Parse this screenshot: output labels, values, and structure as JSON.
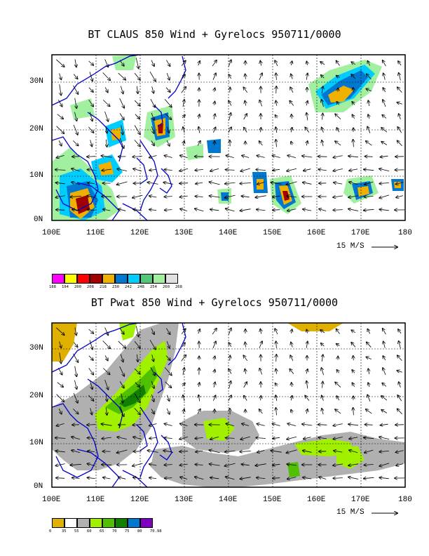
{
  "panels": [
    {
      "title": "BT CLAUS 850 Wind + Gyrelocs 950711/0000",
      "lat_labels": [
        "30N",
        "20N",
        "10N",
        "0N"
      ],
      "lon_labels": [
        "100E",
        "110E",
        "120E",
        "130E",
        "140E",
        "150E",
        "160E",
        "170E",
        "180"
      ],
      "vector_scale": "15 M/S",
      "legend": {
        "colors": [
          "#ff00ff",
          "#ffff00",
          "#ff0000",
          "#a00000",
          "#f0b000",
          "#0078d0",
          "#00ccff",
          "#50c878",
          "#a0f0a0",
          "#e0e0e0"
        ],
        "labels": [
          "188",
          "194",
          "200",
          "208",
          "218",
          "230",
          "242",
          "248",
          "254",
          "260",
          "268"
        ]
      }
    },
    {
      "title": "BT Pwat 850 Wind + Gyrelocs 950711/0000",
      "lat_labels": [
        "30N",
        "20N",
        "10N",
        "0N"
      ],
      "lon_labels": [
        "100E",
        "110E",
        "120E",
        "130E",
        "140E",
        "150E",
        "160E",
        "170E",
        "180"
      ],
      "vector_scale": "15 M/S",
      "legend": {
        "colors": [
          "#e0b000",
          "#ffffff",
          "#b0b0b0",
          "#a0f000",
          "#50c000",
          "#108000",
          "#0078d0",
          "#8000c0"
        ],
        "labels": [
          "0",
          "35",
          "55",
          "60",
          "65",
          "70",
          "75",
          "80",
          "70.98"
        ]
      }
    }
  ],
  "colors": {
    "coastline": "#0000cc",
    "grid": "#000000"
  }
}
